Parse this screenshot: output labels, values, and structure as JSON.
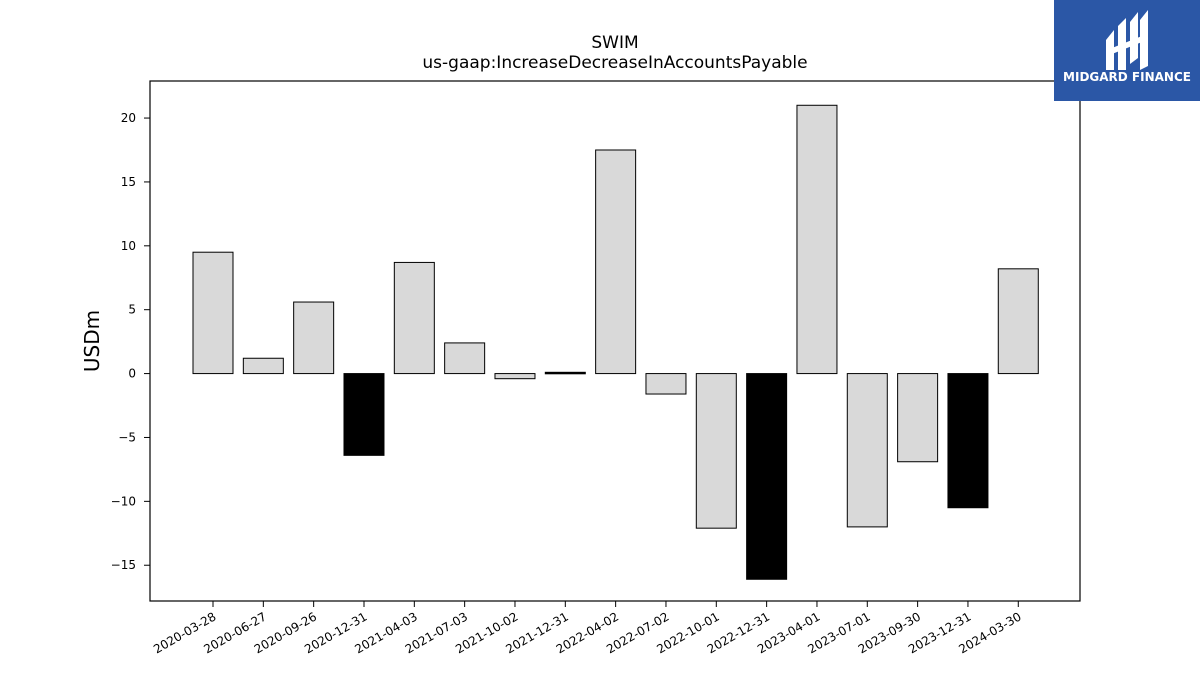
{
  "chart_data": {
    "type": "bar",
    "title": "SWIM",
    "subtitle": "us-gaap:IncreaseDecreaseInAccountsPayable",
    "xlabel": "",
    "ylabel": "USDm",
    "ylim": [
      -17.8,
      22.9
    ],
    "yticks": [
      20,
      15,
      10,
      5,
      0,
      -5,
      -10,
      -15
    ],
    "ytick_labels": [
      "20",
      "15",
      "10",
      "5",
      "0",
      "−5",
      "−10",
      "−15"
    ],
    "grid": false,
    "categories": [
      "2020-03-28",
      "2020-06-27",
      "2020-09-26",
      "2020-12-31",
      "2021-04-03",
      "2021-07-03",
      "2021-10-02",
      "2021-12-31",
      "2022-04-02",
      "2022-07-02",
      "2022-10-01",
      "2022-12-31",
      "2023-04-01",
      "2023-07-01",
      "2023-09-30",
      "2023-12-31",
      "2024-03-30"
    ],
    "values": [
      9.5,
      1.2,
      5.6,
      -6.4,
      8.7,
      2.4,
      -0.4,
      0.1,
      17.5,
      -1.6,
      -12.1,
      -16.1,
      21.0,
      -12.0,
      -6.9,
      -10.5,
      8.2
    ],
    "bar_colors": [
      "#d9d9d9",
      "#d9d9d9",
      "#d9d9d9",
      "#000000",
      "#d9d9d9",
      "#d9d9d9",
      "#d9d9d9",
      "#000000",
      "#d9d9d9",
      "#d9d9d9",
      "#d9d9d9",
      "#000000",
      "#d9d9d9",
      "#d9d9d9",
      "#d9d9d9",
      "#000000",
      "#d9d9d9"
    ]
  },
  "logo": {
    "text": "MIDGARD FINANCE",
    "background": "#2b57a6"
  }
}
